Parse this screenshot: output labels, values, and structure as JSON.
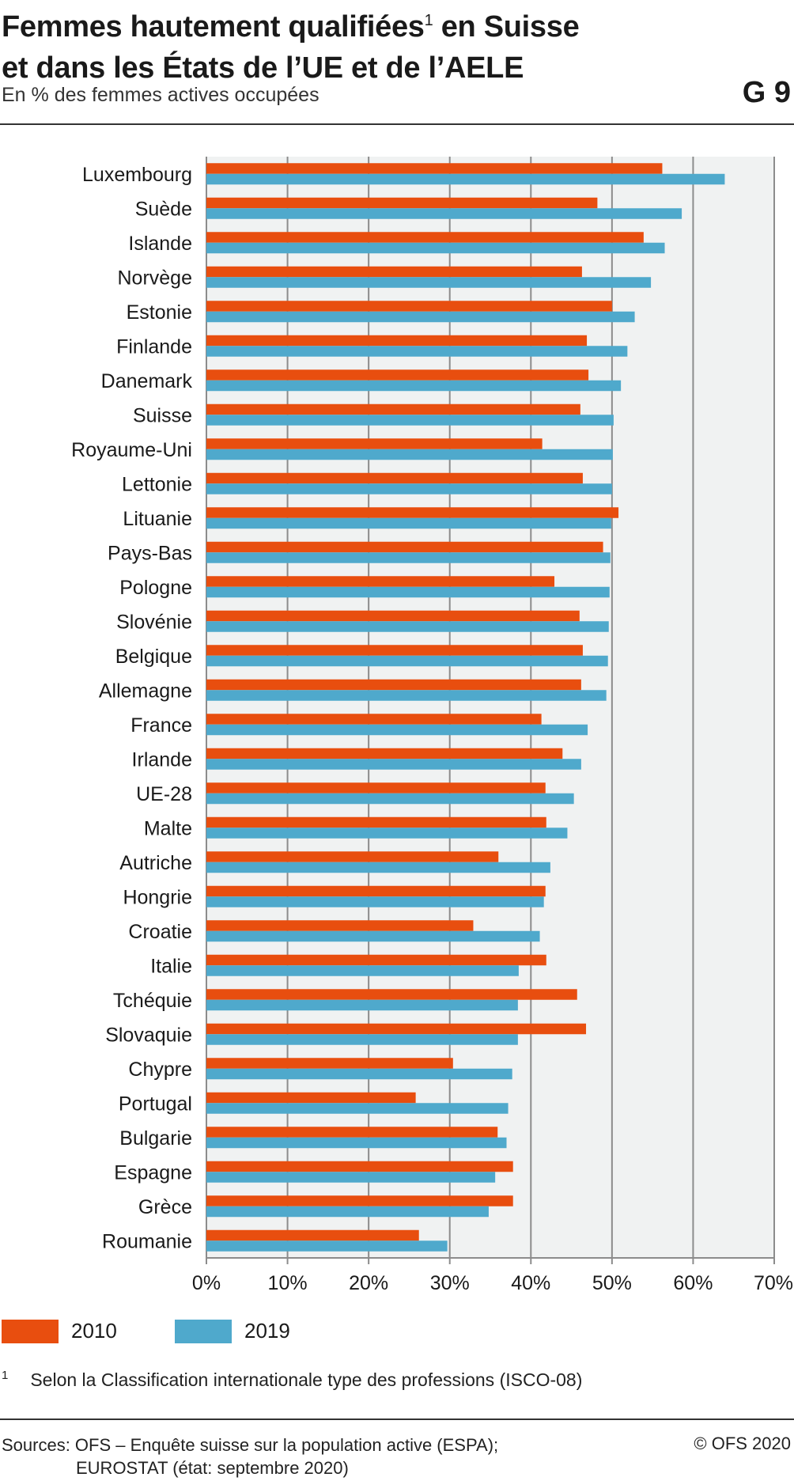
{
  "header": {
    "title_line1": "Femmes hautement qualifiées",
    "title_sup": "1",
    "title_line1_end": " en Suisse",
    "title_line2": "et dans les États de l’UE et de l’AELE",
    "subtitle": "En % des femmes actives occupées",
    "code": "G 9"
  },
  "colors": {
    "series_2010": "#e84e0f",
    "series_2019": "#4fa9cc",
    "plot_background": "#f0f2f2",
    "gridline": "#8c8c8c"
  },
  "chart_data": {
    "type": "bar",
    "orientation": "horizontal",
    "categories": [
      "Luxembourg",
      "Suède",
      "Islande",
      "Norvège",
      "Estonie",
      "Finlande",
      "Danemark",
      "Suisse",
      "Royaume-Uni",
      "Lettonie",
      "Lituanie",
      "Pays-Bas",
      "Pologne",
      "Slovénie",
      "Belgique",
      "Allemagne",
      "France",
      "Irlande",
      "UE-28",
      "Malte",
      "Autriche",
      "Hongrie",
      "Croatie",
      "Italie",
      "Tchéquie",
      "Slovaquie",
      "Chypre",
      "Portugal",
      "Bulgarie",
      "Espagne",
      "Grèce",
      "Roumanie"
    ],
    "series": [
      {
        "name": "2010",
        "values": [
          56.2,
          48.2,
          53.9,
          46.3,
          50.0,
          46.9,
          47.1,
          46.1,
          41.4,
          46.4,
          50.8,
          48.9,
          42.9,
          46.0,
          46.4,
          46.2,
          41.3,
          43.9,
          41.8,
          41.9,
          36.0,
          41.8,
          32.9,
          41.9,
          45.7,
          46.8,
          30.4,
          25.8,
          35.9,
          37.8,
          37.8,
          26.2
        ]
      },
      {
        "name": "2019",
        "values": [
          63.9,
          58.6,
          56.5,
          54.8,
          52.8,
          51.9,
          51.1,
          50.2,
          50.1,
          50.0,
          49.9,
          49.8,
          49.7,
          49.6,
          49.5,
          49.3,
          47.0,
          46.2,
          45.3,
          44.5,
          42.4,
          41.6,
          41.1,
          38.5,
          38.4,
          38.4,
          37.7,
          37.2,
          37.0,
          35.6,
          34.8,
          29.7
        ]
      }
    ],
    "xticks": [
      "0%",
      "10%",
      "20%",
      "30%",
      "40%",
      "50%",
      "60%",
      "70%"
    ],
    "xlim": [
      0,
      70
    ],
    "grid": true,
    "legend_position": "bottom-left"
  },
  "legend": [
    {
      "label": "2010"
    },
    {
      "label": "2019"
    }
  ],
  "footnote": {
    "mark": "1",
    "text": "Selon la Classification internationale type des professions (ISCO-08)"
  },
  "sources": {
    "line1": "Sources: OFS – Enquête suisse sur la population active (ESPA);",
    "line2": "EUROSTAT (état: septembre 2020)",
    "copyright": "© OFS 2020"
  }
}
